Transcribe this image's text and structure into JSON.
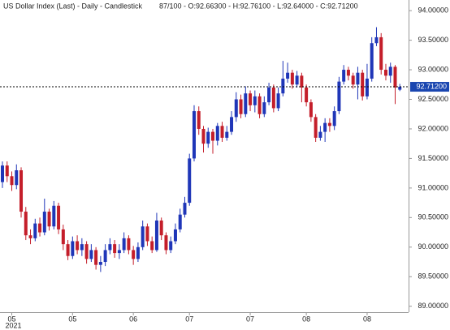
{
  "chart_data": {
    "type": "candlestick",
    "title": "US Dollar Index (Last) - Daily - Candlestick",
    "subtitle": "87/100 - O:92.66300 - H:92.76100 - L:92.64000 - C:92.71200",
    "up_color": "#1f36b8",
    "down_color": "#c41e2a",
    "categories": [
      null,
      null,
      "05",
      null,
      null,
      null,
      null,
      null,
      null,
      null,
      null,
      null,
      null,
      null,
      null,
      "05",
      null,
      null,
      null,
      null,
      null,
      null,
      null,
      null,
      null,
      null,
      null,
      null,
      "06",
      null,
      null,
      null,
      null,
      null,
      null,
      null,
      null,
      null,
      null,
      null,
      "07",
      null,
      null,
      null,
      null,
      null,
      null,
      null,
      null,
      null,
      null,
      null,
      null,
      "07",
      null,
      null,
      null,
      null,
      null,
      null,
      null,
      null,
      null,
      null,
      null,
      "08",
      null,
      null,
      null,
      null,
      null,
      null,
      null,
      null,
      null,
      null,
      null,
      null,
      "08",
      null,
      null,
      null,
      null,
      null,
      null,
      null
    ],
    "year_label": "2021",
    "open": [
      91.1,
      91.38,
      91.2,
      91.05,
      91.3,
      90.6,
      90.2,
      90.15,
      90.4,
      90.25,
      90.6,
      90.35,
      90.7,
      90.3,
      90.05,
      89.85,
      90.1,
      89.95,
      90.05,
      89.8,
      89.95,
      89.7,
      89.75,
      89.95,
      90.05,
      89.9,
      89.95,
      90.15,
      89.95,
      89.8,
      90.0,
      90.35,
      90.1,
      89.95,
      90.45,
      90.2,
      89.95,
      90.1,
      90.3,
      90.55,
      90.75,
      91.5,
      92.3,
      92.0,
      91.75,
      91.95,
      91.8,
      92.05,
      91.85,
      91.95,
      92.2,
      92.5,
      92.25,
      92.6,
      92.4,
      92.55,
      92.25,
      92.45,
      92.7,
      92.35,
      92.6,
      92.85,
      92.95,
      92.75,
      92.9,
      92.7,
      92.45,
      92.2,
      91.85,
      91.95,
      92.1,
      92.05,
      92.3,
      92.8,
      93.0,
      92.9,
      92.75,
      92.95,
      92.55,
      92.85,
      93.45,
      93.55,
      93.0,
      92.9,
      93.05,
      92.663
    ],
    "high": [
      91.45,
      91.45,
      91.28,
      91.4,
      91.35,
      90.68,
      90.3,
      90.48,
      90.5,
      90.82,
      90.65,
      90.78,
      90.75,
      90.38,
      90.12,
      90.18,
      90.2,
      90.15,
      90.1,
      90.05,
      90.0,
      89.85,
      90.05,
      90.15,
      90.12,
      90.05,
      90.25,
      90.2,
      90.02,
      90.08,
      90.45,
      90.4,
      90.18,
      90.58,
      90.5,
      90.25,
      90.18,
      90.4,
      90.65,
      90.85,
      91.58,
      92.4,
      92.38,
      92.05,
      92.02,
      92.0,
      92.1,
      92.12,
      92.05,
      92.3,
      92.62,
      92.58,
      92.72,
      92.65,
      92.65,
      92.6,
      92.55,
      92.78,
      92.75,
      92.7,
      93.15,
      93.12,
      93.0,
      92.98,
      92.95,
      92.75,
      92.5,
      92.25,
      92.05,
      92.18,
      92.18,
      92.38,
      92.88,
      93.08,
      93.05,
      92.95,
      93.05,
      93.0,
      93.1,
      93.55,
      93.72,
      93.62,
      93.1,
      93.12,
      93.08,
      92.761
    ],
    "low": [
      91.0,
      91.1,
      90.95,
      90.98,
      90.5,
      90.12,
      90.05,
      90.1,
      90.18,
      90.2,
      90.28,
      90.3,
      90.22,
      89.95,
      89.78,
      89.8,
      89.88,
      89.85,
      89.72,
      89.75,
      89.62,
      89.58,
      89.68,
      89.88,
      89.82,
      89.8,
      89.9,
      89.88,
      89.7,
      89.75,
      89.95,
      90.02,
      89.9,
      89.92,
      90.12,
      89.88,
      89.9,
      90.05,
      90.25,
      90.5,
      90.7,
      91.45,
      91.9,
      91.6,
      91.68,
      91.58,
      91.72,
      91.78,
      91.8,
      91.9,
      92.12,
      92.18,
      92.2,
      92.3,
      92.28,
      92.18,
      92.2,
      92.4,
      92.28,
      92.3,
      92.55,
      92.78,
      92.68,
      92.7,
      92.45,
      92.38,
      92.12,
      91.78,
      91.8,
      91.78,
      91.95,
      91.98,
      92.25,
      92.75,
      92.82,
      92.68,
      92.5,
      92.48,
      92.5,
      92.8,
      93.4,
      92.92,
      92.82,
      92.78,
      92.42,
      92.64
    ],
    "close": [
      91.38,
      91.2,
      91.05,
      91.3,
      90.6,
      90.2,
      90.15,
      90.4,
      90.25,
      90.6,
      90.35,
      90.7,
      90.3,
      90.05,
      89.85,
      90.1,
      89.95,
      90.05,
      89.8,
      89.95,
      89.7,
      89.75,
      89.95,
      90.05,
      89.9,
      89.95,
      90.15,
      89.95,
      89.8,
      90.0,
      90.35,
      90.1,
      89.95,
      90.45,
      90.2,
      89.95,
      90.1,
      90.3,
      90.55,
      90.75,
      91.5,
      92.3,
      92.0,
      91.75,
      91.95,
      91.8,
      92.05,
      91.85,
      91.95,
      92.2,
      92.5,
      92.25,
      92.6,
      92.4,
      92.55,
      92.25,
      92.45,
      92.7,
      92.35,
      92.6,
      92.85,
      92.95,
      92.75,
      92.9,
      92.7,
      92.45,
      92.2,
      91.85,
      91.95,
      92.1,
      92.05,
      92.3,
      92.8,
      93.0,
      92.9,
      92.75,
      92.95,
      92.55,
      92.85,
      93.45,
      93.55,
      93.0,
      92.9,
      93.05,
      92.7,
      92.712
    ],
    "last_price": {
      "value": 92.712,
      "label": "92.71200"
    },
    "ylim": [
      88.9,
      94.18
    ],
    "yticks": [
      {
        "value": 89,
        "label": "89.00000"
      },
      {
        "value": 89.5,
        "label": "89.50000"
      },
      {
        "value": 90,
        "label": "90.00000"
      },
      {
        "value": 90.5,
        "label": "90.50000"
      },
      {
        "value": 91,
        "label": "91.00000"
      },
      {
        "value": 91.5,
        "label": "91.50000"
      },
      {
        "value": 92,
        "label": "92.00000"
      },
      {
        "value": 92.5,
        "label": "92.50000"
      },
      {
        "value": 93,
        "label": "93.00000"
      },
      {
        "value": 93.5,
        "label": "93.50000"
      },
      {
        "value": 94,
        "label": "94.00000"
      }
    ]
  }
}
